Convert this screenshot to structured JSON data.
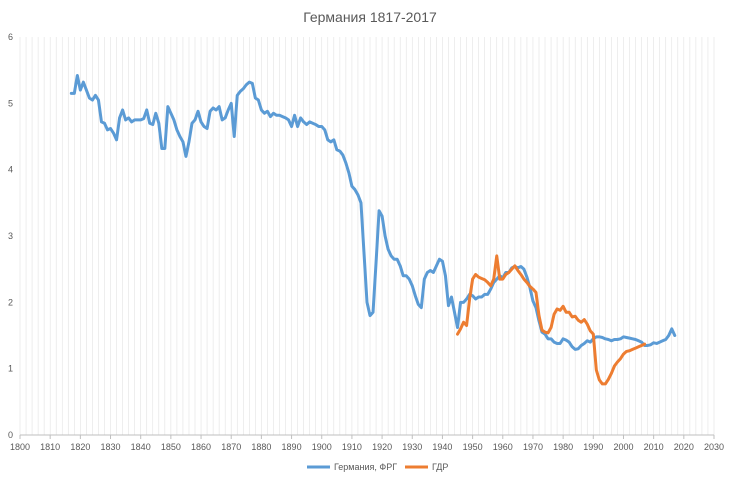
{
  "chart_data": {
    "type": "line",
    "title": "Германия 1817-2017",
    "xlabel": "",
    "ylabel": "",
    "xlim": [
      1800,
      2030
    ],
    "ylim": [
      0,
      6
    ],
    "xticks": [
      "1800",
      "1810",
      "1820",
      "1830",
      "1840",
      "1850",
      "1860",
      "1870",
      "1880",
      "1890",
      "1900",
      "1910",
      "1920",
      "1930",
      "1940",
      "1950",
      "1960",
      "1970",
      "1980",
      "1990",
      "2000",
      "2010",
      "2020",
      "2030"
    ],
    "yticks": [
      "0",
      "1",
      "2",
      "3",
      "4",
      "5",
      "6"
    ],
    "grid": "vertical-minor",
    "legend_position": "bottom",
    "series": [
      {
        "name": "Германия, ФРГ",
        "color": "#5B9BD5",
        "points": [
          [
            1817,
            5.15
          ],
          [
            1818,
            5.15
          ],
          [
            1819,
            5.42
          ],
          [
            1820,
            5.2
          ],
          [
            1821,
            5.32
          ],
          [
            1822,
            5.2
          ],
          [
            1823,
            5.08
          ],
          [
            1824,
            5.05
          ],
          [
            1825,
            5.12
          ],
          [
            1826,
            5.05
          ],
          [
            1827,
            4.72
          ],
          [
            1828,
            4.7
          ],
          [
            1829,
            4.6
          ],
          [
            1830,
            4.62
          ],
          [
            1831,
            4.55
          ],
          [
            1832,
            4.45
          ],
          [
            1833,
            4.78
          ],
          [
            1834,
            4.9
          ],
          [
            1835,
            4.75
          ],
          [
            1836,
            4.78
          ],
          [
            1837,
            4.72
          ],
          [
            1838,
            4.75
          ],
          [
            1839,
            4.75
          ],
          [
            1840,
            4.75
          ],
          [
            1841,
            4.77
          ],
          [
            1842,
            4.9
          ],
          [
            1843,
            4.7
          ],
          [
            1844,
            4.68
          ],
          [
            1845,
            4.85
          ],
          [
            1846,
            4.7
          ],
          [
            1847,
            4.32
          ],
          [
            1848,
            4.32
          ],
          [
            1849,
            4.95
          ],
          [
            1850,
            4.85
          ],
          [
            1851,
            4.75
          ],
          [
            1852,
            4.6
          ],
          [
            1853,
            4.5
          ],
          [
            1854,
            4.42
          ],
          [
            1855,
            4.2
          ],
          [
            1856,
            4.42
          ],
          [
            1857,
            4.7
          ],
          [
            1858,
            4.75
          ],
          [
            1859,
            4.88
          ],
          [
            1860,
            4.72
          ],
          [
            1861,
            4.65
          ],
          [
            1862,
            4.62
          ],
          [
            1863,
            4.88
          ],
          [
            1864,
            4.93
          ],
          [
            1865,
            4.9
          ],
          [
            1866,
            4.95
          ],
          [
            1867,
            4.75
          ],
          [
            1868,
            4.78
          ],
          [
            1869,
            4.9
          ],
          [
            1870,
            5.0
          ],
          [
            1871,
            4.5
          ],
          [
            1872,
            5.12
          ],
          [
            1873,
            5.18
          ],
          [
            1874,
            5.22
          ],
          [
            1875,
            5.28
          ],
          [
            1876,
            5.32
          ],
          [
            1877,
            5.3
          ],
          [
            1878,
            5.08
          ],
          [
            1879,
            5.05
          ],
          [
            1880,
            4.9
          ],
          [
            1881,
            4.85
          ],
          [
            1882,
            4.88
          ],
          [
            1883,
            4.8
          ],
          [
            1884,
            4.85
          ],
          [
            1885,
            4.82
          ],
          [
            1886,
            4.82
          ],
          [
            1887,
            4.8
          ],
          [
            1888,
            4.78
          ],
          [
            1889,
            4.75
          ],
          [
            1890,
            4.65
          ],
          [
            1891,
            4.82
          ],
          [
            1892,
            4.65
          ],
          [
            1893,
            4.78
          ],
          [
            1894,
            4.72
          ],
          [
            1895,
            4.68
          ],
          [
            1896,
            4.72
          ],
          [
            1897,
            4.7
          ],
          [
            1898,
            4.68
          ],
          [
            1899,
            4.65
          ],
          [
            1900,
            4.65
          ],
          [
            1901,
            4.6
          ],
          [
            1902,
            4.45
          ],
          [
            1903,
            4.42
          ],
          [
            1904,
            4.45
          ],
          [
            1905,
            4.3
          ],
          [
            1906,
            4.28
          ],
          [
            1907,
            4.22
          ],
          [
            1908,
            4.1
          ],
          [
            1909,
            3.95
          ],
          [
            1910,
            3.75
          ],
          [
            1911,
            3.7
          ],
          [
            1912,
            3.62
          ],
          [
            1913,
            3.5
          ],
          [
            1914,
            2.75
          ],
          [
            1915,
            2.0
          ],
          [
            1916,
            1.8
          ],
          [
            1917,
            1.85
          ],
          [
            1918,
            2.6
          ],
          [
            1919,
            3.38
          ],
          [
            1920,
            3.3
          ],
          [
            1921,
            3.0
          ],
          [
            1922,
            2.8
          ],
          [
            1923,
            2.7
          ],
          [
            1924,
            2.65
          ],
          [
            1925,
            2.65
          ],
          [
            1926,
            2.55
          ],
          [
            1927,
            2.4
          ],
          [
            1928,
            2.4
          ],
          [
            1929,
            2.35
          ],
          [
            1930,
            2.25
          ],
          [
            1931,
            2.1
          ],
          [
            1932,
            1.97
          ],
          [
            1933,
            1.92
          ],
          [
            1934,
            2.35
          ],
          [
            1935,
            2.45
          ],
          [
            1936,
            2.48
          ],
          [
            1937,
            2.45
          ],
          [
            1938,
            2.55
          ],
          [
            1939,
            2.65
          ],
          [
            1940,
            2.62
          ],
          [
            1941,
            2.4
          ],
          [
            1942,
            1.95
          ],
          [
            1943,
            2.08
          ],
          [
            1944,
            1.85
          ],
          [
            1945,
            1.62
          ],
          [
            1946,
            2.0
          ],
          [
            1947,
            2.0
          ],
          [
            1948,
            2.05
          ],
          [
            1949,
            2.12
          ],
          [
            1950,
            2.1
          ],
          [
            1951,
            2.05
          ],
          [
            1952,
            2.08
          ],
          [
            1953,
            2.08
          ],
          [
            1954,
            2.12
          ],
          [
            1955,
            2.12
          ],
          [
            1956,
            2.2
          ],
          [
            1957,
            2.3
          ],
          [
            1958,
            2.35
          ],
          [
            1959,
            2.4
          ],
          [
            1960,
            2.37
          ],
          [
            1961,
            2.45
          ],
          [
            1962,
            2.45
          ],
          [
            1963,
            2.52
          ],
          [
            1964,
            2.54
          ],
          [
            1965,
            2.52
          ],
          [
            1966,
            2.54
          ],
          [
            1967,
            2.5
          ],
          [
            1968,
            2.38
          ],
          [
            1969,
            2.22
          ],
          [
            1970,
            2.02
          ],
          [
            1971,
            1.92
          ],
          [
            1972,
            1.72
          ],
          [
            1973,
            1.55
          ],
          [
            1974,
            1.52
          ],
          [
            1975,
            1.45
          ],
          [
            1976,
            1.45
          ],
          [
            1977,
            1.4
          ],
          [
            1978,
            1.38
          ],
          [
            1979,
            1.38
          ],
          [
            1980,
            1.45
          ],
          [
            1981,
            1.43
          ],
          [
            1982,
            1.4
          ],
          [
            1983,
            1.33
          ],
          [
            1984,
            1.29
          ],
          [
            1985,
            1.3
          ],
          [
            1986,
            1.35
          ],
          [
            1987,
            1.38
          ],
          [
            1988,
            1.42
          ],
          [
            1989,
            1.4
          ],
          [
            1990,
            1.45
          ],
          [
            1991,
            1.48
          ],
          [
            1992,
            1.48
          ],
          [
            1993,
            1.47
          ],
          [
            1994,
            1.45
          ],
          [
            1995,
            1.44
          ],
          [
            1996,
            1.42
          ],
          [
            1997,
            1.44
          ],
          [
            1998,
            1.44
          ],
          [
            1999,
            1.45
          ],
          [
            2000,
            1.48
          ],
          [
            2001,
            1.47
          ],
          [
            2002,
            1.46
          ],
          [
            2003,
            1.45
          ],
          [
            2004,
            1.44
          ],
          [
            2005,
            1.42
          ],
          [
            2006,
            1.4
          ],
          [
            2007,
            1.35
          ],
          [
            2008,
            1.35
          ],
          [
            2009,
            1.36
          ],
          [
            2010,
            1.39
          ],
          [
            2011,
            1.38
          ],
          [
            2012,
            1.4
          ],
          [
            2013,
            1.42
          ],
          [
            2014,
            1.44
          ],
          [
            2015,
            1.5
          ],
          [
            2016,
            1.6
          ],
          [
            2017,
            1.5
          ]
        ]
      },
      {
        "name": "ГДР",
        "color": "#ED7D31",
        "points": [
          [
            1945,
            1.52
          ],
          [
            1946,
            1.6
          ],
          [
            1947,
            1.7
          ],
          [
            1948,
            1.65
          ],
          [
            1949,
            2.05
          ],
          [
            1950,
            2.35
          ],
          [
            1951,
            2.42
          ],
          [
            1952,
            2.38
          ],
          [
            1953,
            2.36
          ],
          [
            1954,
            2.34
          ],
          [
            1955,
            2.3
          ],
          [
            1956,
            2.25
          ],
          [
            1957,
            2.35
          ],
          [
            1958,
            2.7
          ],
          [
            1959,
            2.35
          ],
          [
            1960,
            2.35
          ],
          [
            1961,
            2.42
          ],
          [
            1962,
            2.45
          ],
          [
            1963,
            2.5
          ],
          [
            1964,
            2.55
          ],
          [
            1965,
            2.48
          ],
          [
            1966,
            2.42
          ],
          [
            1967,
            2.35
          ],
          [
            1968,
            2.3
          ],
          [
            1969,
            2.24
          ],
          [
            1970,
            2.2
          ],
          [
            1971,
            2.15
          ],
          [
            1972,
            1.8
          ],
          [
            1973,
            1.58
          ],
          [
            1974,
            1.55
          ],
          [
            1975,
            1.54
          ],
          [
            1976,
            1.62
          ],
          [
            1977,
            1.82
          ],
          [
            1978,
            1.9
          ],
          [
            1979,
            1.88
          ],
          [
            1980,
            1.94
          ],
          [
            1981,
            1.85
          ],
          [
            1982,
            1.85
          ],
          [
            1983,
            1.78
          ],
          [
            1984,
            1.79
          ],
          [
            1985,
            1.73
          ],
          [
            1986,
            1.7
          ],
          [
            1987,
            1.74
          ],
          [
            1988,
            1.67
          ],
          [
            1989,
            1.57
          ],
          [
            1990,
            1.52
          ],
          [
            1991,
            0.98
          ],
          [
            1992,
            0.83
          ],
          [
            1993,
            0.77
          ],
          [
            1994,
            0.77
          ],
          [
            1995,
            0.84
          ],
          [
            1996,
            0.93
          ],
          [
            1997,
            1.04
          ],
          [
            1998,
            1.1
          ],
          [
            1999,
            1.15
          ],
          [
            2000,
            1.22
          ],
          [
            2001,
            1.26
          ],
          [
            2002,
            1.27
          ],
          [
            2003,
            1.29
          ],
          [
            2004,
            1.31
          ],
          [
            2005,
            1.33
          ],
          [
            2006,
            1.35
          ],
          [
            2007,
            1.37
          ]
        ]
      }
    ]
  }
}
